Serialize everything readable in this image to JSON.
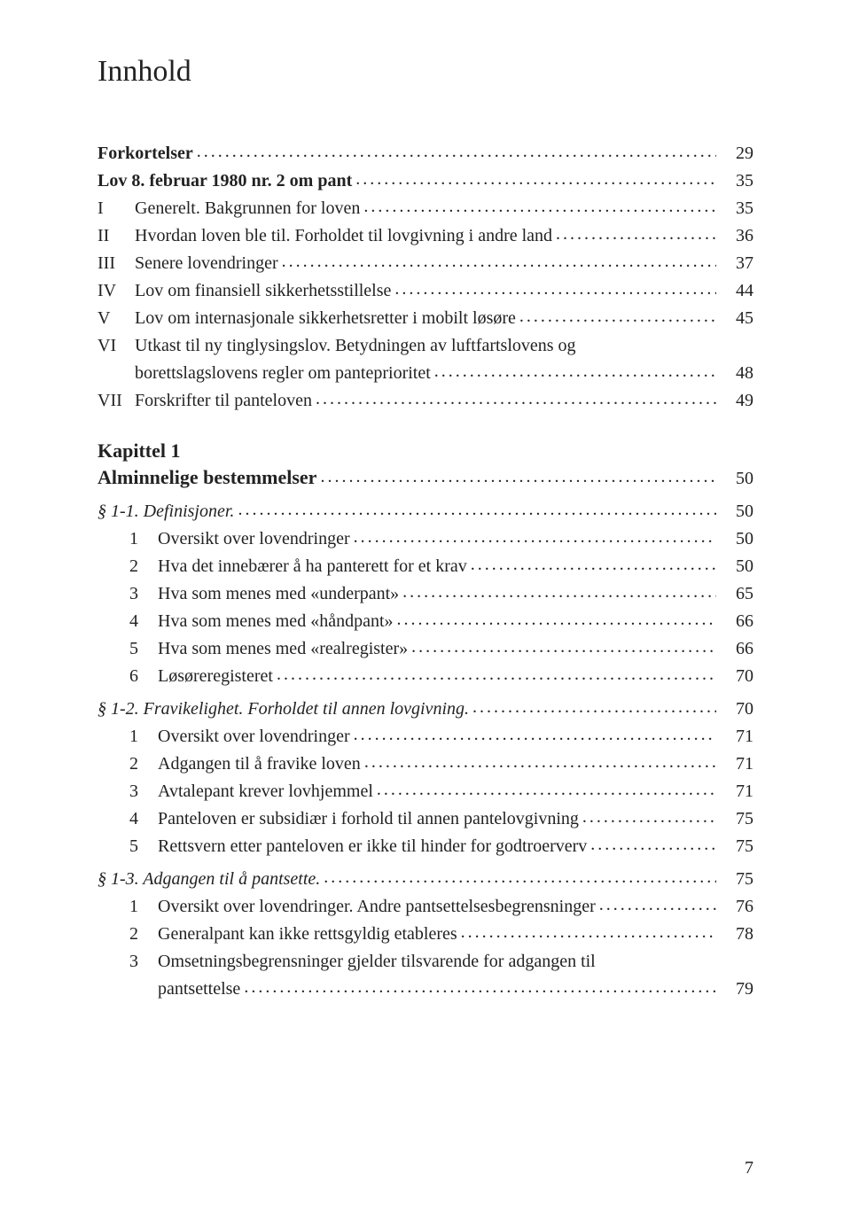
{
  "title": "Innhold",
  "pageNumber": "7",
  "chapter1": {
    "label": "Kapittel 1"
  },
  "entries": {
    "forkortelser": {
      "label": "Forkortelser",
      "page": "29"
    },
    "lov8": {
      "label": "Lov 8. februar 1980 nr. 2 om pant",
      "page": "35"
    },
    "I": {
      "roman": "I",
      "label": "Generelt. Bakgrunnen for loven",
      "page": "35"
    },
    "II": {
      "roman": "II",
      "label": "Hvordan loven ble til. Forholdet til lovgivning i andre land",
      "page": "36"
    },
    "III": {
      "roman": "III",
      "label": "Senere lovendringer",
      "page": "37"
    },
    "IV": {
      "roman": "IV",
      "label": "Lov om finansiell sikkerhetsstillelse",
      "page": "44"
    },
    "V": {
      "roman": "V",
      "label": "Lov om internasjonale sikkerhetsretter i mobilt løsøre",
      "page": "45"
    },
    "VI": {
      "roman": "VI",
      "label": "Utkast til ny tinglysingslov. Betydningen av luftfartslovens og borettslagslovens regler om panteprioritet",
      "labelA": "Utkast til ny tinglysingslov. Betydningen av luftfartslovens og",
      "labelB": "borettslagslovens regler om panteprioritet",
      "page": "48"
    },
    "VII": {
      "roman": "VII",
      "label": "Forskrifter til panteloven",
      "page": "49"
    },
    "alminnelige": {
      "label": "Alminnelige bestemmelser",
      "page": "50"
    },
    "s1_1": {
      "label": "§ 1-1. Definisjoner.",
      "page": "50"
    },
    "s1_1_1": {
      "num": "1",
      "label": "Oversikt over lovendringer",
      "page": "50"
    },
    "s1_1_2": {
      "num": "2",
      "label": "Hva det innebærer å ha panterett for et krav",
      "page": "50"
    },
    "s1_1_3": {
      "num": "3",
      "label": "Hva som menes med «underpant»",
      "page": "65"
    },
    "s1_1_4": {
      "num": "4",
      "label": "Hva som menes med «håndpant»",
      "page": "66"
    },
    "s1_1_5": {
      "num": "5",
      "label": "Hva som menes med «realregister»",
      "page": "66"
    },
    "s1_1_6": {
      "num": "6",
      "label": "Løsøreregisteret",
      "page": "70"
    },
    "s1_2": {
      "label": "§ 1-2. Fravikelighet. Forholdet til annen lovgivning.",
      "page": "70"
    },
    "s1_2_1": {
      "num": "1",
      "label": "Oversikt over lovendringer",
      "page": "71"
    },
    "s1_2_2": {
      "num": "2",
      "label": "Adgangen til å fravike loven",
      "page": "71"
    },
    "s1_2_3": {
      "num": "3",
      "label": "Avtalepant krever lovhjemmel",
      "page": "71"
    },
    "s1_2_4": {
      "num": "4",
      "label": "Panteloven er subsidiær i forhold til annen pantelovgivning",
      "page": "75"
    },
    "s1_2_5": {
      "num": "5",
      "label": "Rettsvern etter panteloven er ikke til hinder for godtroerverv",
      "page": "75"
    },
    "s1_3": {
      "label": "§ 1-3. Adgangen til å pantsette.",
      "page": "75"
    },
    "s1_3_1": {
      "num": "1",
      "label": "Oversikt over lovendringer. Andre pantsettelsesbegrensninger",
      "page": "76"
    },
    "s1_3_2": {
      "num": "2",
      "label": "Generalpant kan ikke rettsgyldig etableres",
      "page": "78"
    },
    "s1_3_3": {
      "num": "3",
      "labelA": "Omsetningsbegrensninger gjelder tilsvarende for adgangen til",
      "labelB": "pantsettelse",
      "page": "79"
    }
  }
}
